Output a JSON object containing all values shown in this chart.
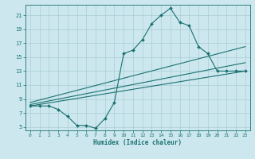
{
  "xlabel": "Humidex (Indice chaleur)",
  "bg_color": "#cce8ee",
  "grid_color": "#aaccd4",
  "line_color": "#1a7070",
  "xlim": [
    -0.5,
    23.5
  ],
  "ylim": [
    4.5,
    22.5
  ],
  "xticks": [
    0,
    1,
    2,
    3,
    4,
    5,
    6,
    7,
    8,
    9,
    10,
    11,
    12,
    13,
    14,
    15,
    16,
    17,
    18,
    19,
    20,
    21,
    22,
    23
  ],
  "yticks": [
    5,
    7,
    9,
    11,
    13,
    15,
    17,
    19,
    21
  ],
  "line1_x": [
    0,
    1,
    2,
    3,
    4,
    5,
    6,
    7,
    8,
    9,
    10,
    11,
    12,
    13,
    14,
    15,
    16,
    17,
    18,
    19,
    20,
    21,
    22,
    23
  ],
  "line1_y": [
    8,
    8,
    8,
    7.5,
    6.5,
    5.2,
    5.2,
    4.8,
    6.2,
    8.5,
    15.5,
    16,
    17.5,
    19.8,
    21,
    22,
    20,
    19.5,
    16.5,
    15.5,
    13,
    13,
    13,
    13
  ],
  "line2_x": [
    0,
    23
  ],
  "line2_y": [
    8.0,
    13.0
  ],
  "line3_x": [
    0,
    23
  ],
  "line3_y": [
    8.2,
    14.2
  ],
  "line4_x": [
    0,
    23
  ],
  "line4_y": [
    8.5,
    16.5
  ]
}
